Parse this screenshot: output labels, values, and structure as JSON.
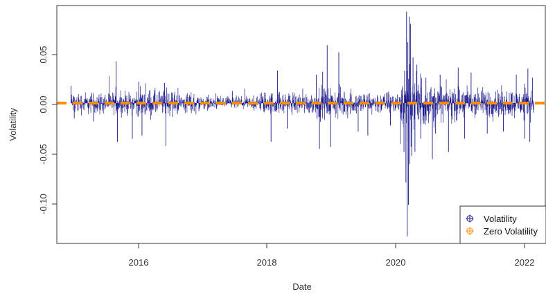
{
  "chart_data": {
    "type": "line",
    "xlabel": "Date",
    "ylabel": "Volatility",
    "xlim": [
      2014.78,
      2022.35
    ],
    "ylim": [
      -0.138,
      0.096
    ],
    "x_ticks": [
      "2016",
      "2018",
      "2020",
      "2022"
    ],
    "y_ticks": [
      "0.05",
      "0.00",
      "-0.05",
      "-0.10"
    ],
    "grid": false,
    "legend_position": "bottom-right",
    "series": [
      {
        "name": "Volatility",
        "color": "#1a1a8c",
        "style": "vertical spikes (type h)",
        "x_range": [
          2015.0,
          2022.17
        ],
        "events": [
          {
            "x": 2015.0,
            "value": 0.017
          },
          {
            "x": 2015.05,
            "value": -0.015
          },
          {
            "x": 2015.35,
            "value": -0.018
          },
          {
            "x": 2015.7,
            "value": 0.041
          },
          {
            "x": 2015.72,
            "value": -0.038
          },
          {
            "x": 2015.95,
            "value": -0.035
          },
          {
            "x": 2016.05,
            "value": 0.021
          },
          {
            "x": 2016.1,
            "value": -0.032
          },
          {
            "x": 2016.45,
            "value": 0.02
          },
          {
            "x": 2016.47,
            "value": -0.042
          },
          {
            "x": 2017.5,
            "value": 0.012
          },
          {
            "x": 2018.1,
            "value": -0.038
          },
          {
            "x": 2018.2,
            "value": 0.032
          },
          {
            "x": 2018.35,
            "value": -0.025
          },
          {
            "x": 2018.8,
            "value": 0.028
          },
          {
            "x": 2018.85,
            "value": -0.045
          },
          {
            "x": 2018.9,
            "value": 0.031
          },
          {
            "x": 2018.97,
            "value": 0.057
          },
          {
            "x": 2019.02,
            "value": -0.043
          },
          {
            "x": 2019.15,
            "value": 0.05
          },
          {
            "x": 2019.45,
            "value": -0.028
          },
          {
            "x": 2019.6,
            "value": -0.032
          },
          {
            "x": 2019.95,
            "value": -0.022
          },
          {
            "x": 2020.16,
            "value": -0.048
          },
          {
            "x": 2020.17,
            "value": 0.032
          },
          {
            "x": 2020.19,
            "value": -0.078
          },
          {
            "x": 2020.2,
            "value": 0.09
          },
          {
            "x": 2020.21,
            "value": -0.131
          },
          {
            "x": 2020.22,
            "value": 0.06
          },
          {
            "x": 2020.23,
            "value": -0.1
          },
          {
            "x": 2020.24,
            "value": 0.085
          },
          {
            "x": 2020.25,
            "value": -0.06
          },
          {
            "x": 2020.26,
            "value": 0.078
          },
          {
            "x": 2020.28,
            "value": -0.052
          },
          {
            "x": 2020.3,
            "value": 0.045
          },
          {
            "x": 2020.33,
            "value": -0.048
          },
          {
            "x": 2020.36,
            "value": 0.038
          },
          {
            "x": 2020.42,
            "value": -0.035
          },
          {
            "x": 2020.5,
            "value": 0.025
          },
          {
            "x": 2020.6,
            "value": -0.055
          },
          {
            "x": 2020.65,
            "value": -0.03
          },
          {
            "x": 2020.72,
            "value": 0.028
          },
          {
            "x": 2020.85,
            "value": -0.048
          },
          {
            "x": 2021.0,
            "value": 0.035
          },
          {
            "x": 2021.1,
            "value": -0.035
          },
          {
            "x": 2021.2,
            "value": 0.03
          },
          {
            "x": 2021.45,
            "value": -0.03
          },
          {
            "x": 2021.7,
            "value": -0.028
          },
          {
            "x": 2021.9,
            "value": 0.028
          },
          {
            "x": 2022.03,
            "value": -0.035
          },
          {
            "x": 2022.08,
            "value": 0.034
          },
          {
            "x": 2022.11,
            "value": -0.038
          },
          {
            "x": 2022.15,
            "value": 0.025
          }
        ]
      },
      {
        "name": "Zero Volatility",
        "color": "#ff8c00",
        "style": "dashed horizontal line",
        "value": 0.0
      }
    ]
  }
}
